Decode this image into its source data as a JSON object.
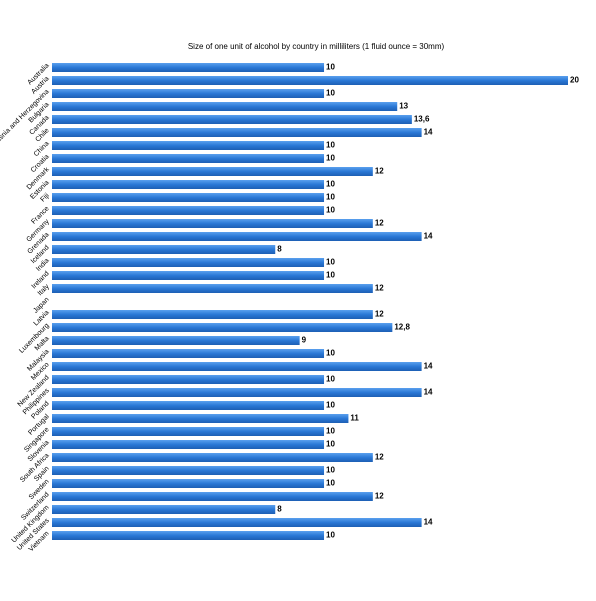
{
  "chart_data": {
    "type": "bar",
    "orientation": "horizontal",
    "title": "Size of one unit of alcohol by country in milliliters (1 fluid ounce = 30mm)",
    "categories": [
      "Australia",
      "Austria",
      "Bosnia and Herzegovina",
      "Bulgaria",
      "Canada",
      "Chile",
      "China",
      "Croatia",
      "Denmark",
      "Estonia",
      "Fiji",
      "France",
      "Germany",
      "Grenada",
      "Iceland",
      "India",
      "Ireland",
      "Italy",
      "Japan",
      "Latvia",
      "Luxembourg",
      "Malta",
      "Malaysia",
      "Mexico",
      "New Zealand",
      "Philippines",
      "Poland",
      "Portugal",
      "Singapore",
      "Slovenia",
      "South Africa",
      "Spain",
      "Sweden",
      "Switzerland",
      "United Kingdom",
      "United States",
      "Vietnam"
    ],
    "values": [
      10,
      20,
      10,
      13,
      13.6,
      14,
      10,
      10,
      12,
      10,
      10,
      10,
      12,
      14,
      8,
      10,
      10,
      12,
      null,
      12,
      12.8,
      9,
      10,
      14,
      10,
      14,
      10,
      11,
      10,
      10,
      12,
      10,
      10,
      12,
      8,
      14,
      10
    ],
    "value_labels": [
      "10",
      "20",
      "10",
      "13",
      "13,6",
      "14",
      "10",
      "10",
      "12",
      "10",
      "10",
      "10",
      "12",
      "14",
      "8",
      "10",
      "10",
      "12",
      null,
      "12",
      "12,8",
      "9",
      "10",
      "14",
      "10",
      "14",
      "10",
      "11",
      "10",
      "10",
      "12",
      "10",
      "10",
      "12",
      "8",
      "14",
      "10"
    ],
    "color": "#2a78d6",
    "xlim": [
      -1.15,
      20
    ]
  }
}
